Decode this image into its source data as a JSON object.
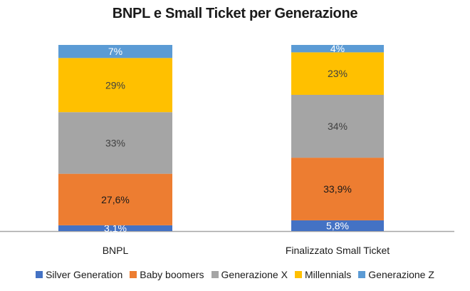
{
  "chart_data": {
    "type": "bar",
    "stacked": true,
    "title": "BNPL e Small Ticket per Generazione",
    "xlabel": "",
    "ylabel": "",
    "ylim": [
      0,
      100
    ],
    "grid": false,
    "legend_position": "bottom",
    "categories": [
      "BNPL",
      "Finalizzato Small Ticket"
    ],
    "series": [
      {
        "name": "Silver Generation",
        "color": "#4472C4",
        "label_color": "#ffffff",
        "values": [
          3.1,
          5.8
        ],
        "labels": [
          "3,1%",
          "5,8%"
        ]
      },
      {
        "name": "Baby boomers",
        "color": "#ED7D31",
        "label_color": "#1a1a1a",
        "values": [
          27.6,
          33.9
        ],
        "labels": [
          "27,6%",
          "33,9%"
        ]
      },
      {
        "name": "Generazione X",
        "color": "#A5A5A5",
        "label_color": "#404040",
        "values": [
          33,
          34
        ],
        "labels": [
          "33%",
          "34%"
        ]
      },
      {
        "name": "Millennials",
        "color": "#FFC000",
        "label_color": "#404040",
        "values": [
          29,
          23
        ],
        "labels": [
          "29%",
          "23%"
        ]
      },
      {
        "name": "Generazione Z",
        "color": "#5B9BD5",
        "label_color": "#ffffff",
        "values": [
          7,
          4
        ],
        "labels": [
          "7%",
          "4%"
        ]
      }
    ]
  }
}
